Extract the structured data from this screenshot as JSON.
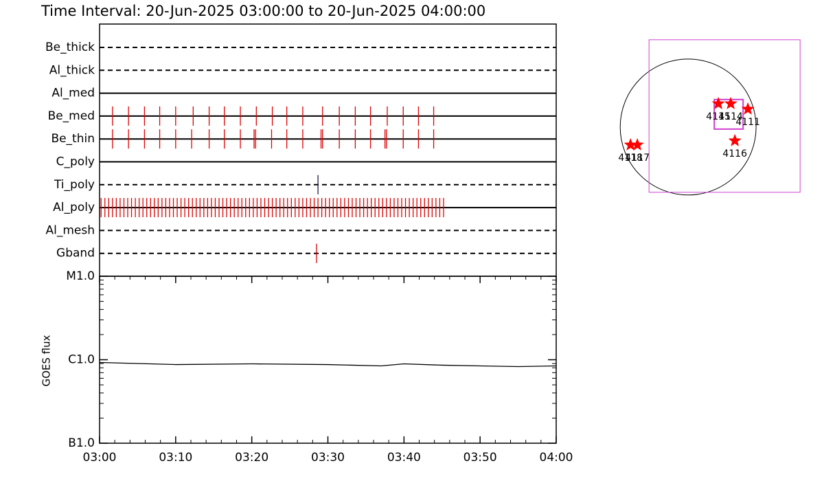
{
  "title": "Time Interval: 20-Jun-2025 03:00:00 to 20-Jun-2025 04:00:00",
  "chart_data": [
    {
      "type": "timeline",
      "filters": [
        {
          "name": "Be_thick",
          "style": "dashed",
          "color": "#e00000",
          "times": []
        },
        {
          "name": "Al_thick",
          "style": "dashed",
          "color": "#e00000",
          "times": []
        },
        {
          "name": "Al_med",
          "style": "solid",
          "color": "#e00000",
          "times": []
        },
        {
          "name": "Be_med",
          "style": "solid",
          "color": "#e00000",
          "times": [
            1.7,
            3.8,
            5.9,
            7.9,
            10.0,
            12.3,
            14.4,
            16.4,
            18.5,
            20.6,
            22.7,
            24.6,
            26.7,
            29.3,
            31.5,
            33.6,
            35.6,
            37.8,
            39.9,
            41.9,
            43.9
          ]
        },
        {
          "name": "Be_thin",
          "style": "solid",
          "color": "#e00000",
          "times": [
            1.7,
            3.8,
            5.9,
            7.9,
            10.0,
            12.1,
            14.4,
            16.4,
            18.5,
            20.3,
            20.5,
            22.6,
            24.6,
            26.7,
            29.1,
            29.3,
            31.5,
            33.6,
            35.6,
            37.5,
            37.7,
            39.9,
            41.9,
            43.9
          ]
        },
        {
          "name": "C_poly",
          "style": "solid",
          "color": "#e00000",
          "times": []
        },
        {
          "name": "Ti_poly",
          "style": "dashed",
          "color": "#1a1a40",
          "times": [
            28.7
          ]
        },
        {
          "name": "Al_poly",
          "style": "solid",
          "color": "#e00000",
          "times": [
            0.2,
            0.7,
            1.2,
            1.7,
            2.2,
            2.7,
            3.2,
            3.7,
            4.2,
            4.7,
            5.2,
            5.7,
            6.2,
            6.7,
            7.2,
            7.7,
            8.2,
            8.7,
            9.2,
            9.7,
            10.2,
            10.7,
            11.2,
            11.7,
            12.2,
            12.7,
            13.2,
            13.7,
            14.2,
            14.7,
            15.2,
            15.7,
            16.2,
            16.7,
            17.2,
            17.7,
            18.2,
            18.7,
            19.2,
            19.7,
            20.2,
            20.7,
            21.2,
            21.7,
            22.2,
            22.7,
            23.2,
            23.7,
            24.2,
            24.7,
            25.2,
            25.7,
            26.2,
            26.7,
            27.2,
            27.7,
            28.2,
            28.7,
            29.2,
            29.7,
            30.2,
            30.7,
            31.2,
            31.7,
            32.2,
            32.7,
            33.2,
            33.7,
            34.2,
            34.7,
            35.2,
            35.7,
            36.2,
            36.7,
            37.2,
            37.7,
            38.2,
            38.7,
            39.2,
            39.7,
            40.2,
            40.7,
            41.2,
            41.7,
            42.2,
            42.7,
            43.2,
            43.7,
            44.2,
            44.7,
            45.2
          ]
        },
        {
          "name": "Al_mesh",
          "style": "dashed",
          "color": "#e00000",
          "times": []
        },
        {
          "name": "Gband",
          "style": "dashed",
          "color": "#e00000",
          "times": [
            28.5
          ]
        }
      ]
    },
    {
      "type": "line",
      "y_label": "GOES flux",
      "log": true,
      "xlim": [
        0,
        60
      ],
      "xticks": [
        {
          "value": 0,
          "label": "03:00"
        },
        {
          "value": 10,
          "label": "03:10"
        },
        {
          "value": 20,
          "label": "03:20"
        },
        {
          "value": 30,
          "label": "03:30"
        },
        {
          "value": 40,
          "label": "03:40"
        },
        {
          "value": 50,
          "label": "03:50"
        },
        {
          "value": 60,
          "label": "04:00"
        }
      ],
      "ylim": [
        1e-07,
        1e-05
      ],
      "yticks": [
        {
          "value": 1e-07,
          "label": "B1.0"
        },
        {
          "value": 1e-06,
          "label": "C1.0"
        },
        {
          "value": 1e-05,
          "label": "M1.0"
        }
      ],
      "color": "#000000",
      "x": [
        0,
        10,
        20,
        30,
        37,
        40,
        45,
        50,
        55,
        60
      ],
      "values": [
        9.27e-07,
        8.75e-07,
        8.92e-07,
        8.75e-07,
        8.43e-07,
        8.92e-07,
        8.6e-07,
        8.43e-07,
        8.27e-07,
        8.43e-07
      ]
    },
    {
      "type": "map",
      "xlim": [
        -1000,
        1900
      ],
      "ylim": [
        -1250,
        1400
      ],
      "radius": 950,
      "fov_color": "#d040d0",
      "star_color": "#ff0000",
      "fov": [
        [
          -547,
          1565,
          -912,
          1219
        ],
        [
          365,
          768,
          -29,
          384
        ]
      ],
      "points": [
        {
          "label": "4115",
          "x": 422,
          "y": 326
        },
        {
          "label": "4114",
          "x": 595,
          "y": 326
        },
        {
          "label": "4111",
          "x": 835,
          "y": 250
        },
        {
          "label": "4116",
          "x": 653,
          "y": -192
        },
        {
          "label": "4118",
          "x": -806,
          "y": -250
        },
        {
          "label": "4117",
          "x": -710,
          "y": -250
        }
      ]
    }
  ]
}
